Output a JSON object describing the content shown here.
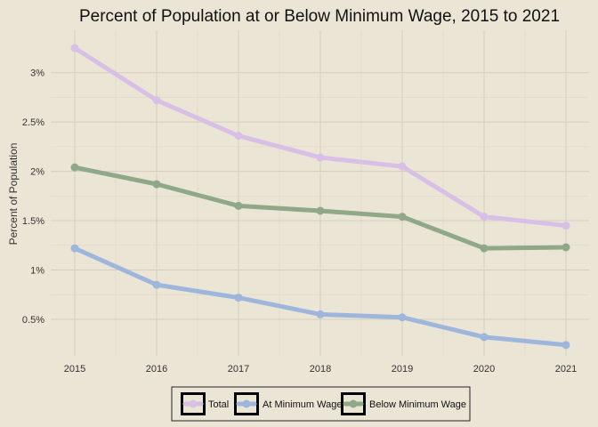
{
  "chart_data": {
    "type": "line",
    "title": "Percent of Population at or Below Minimum Wage, 2015 to 2021",
    "xlabel": "",
    "ylabel": "Percent of Population",
    "x": [
      "2015",
      "2016",
      "2017",
      "2018",
      "2019",
      "2020",
      "2021"
    ],
    "y_ticks": [
      "0.5%",
      "1%",
      "1.5%",
      "2%",
      "2.5%",
      "3%"
    ],
    "y_tick_values": [
      0.5,
      1,
      1.5,
      2,
      2.5,
      3
    ],
    "ylim": [
      0.13,
      3.43
    ],
    "grid": true,
    "legend_position": "bottom",
    "series": [
      {
        "name": "Total",
        "color": "#d8bfe6",
        "values": [
          3.25,
          2.72,
          2.36,
          2.14,
          2.05,
          1.54,
          1.45
        ]
      },
      {
        "name": "At Minimum Wage",
        "color": "#9fb6dc",
        "values": [
          1.22,
          0.85,
          0.72,
          0.55,
          0.52,
          0.32,
          0.24
        ]
      },
      {
        "name": "Below Minimum Wage",
        "color": "#8ea888",
        "values": [
          2.04,
          1.87,
          1.65,
          1.6,
          1.54,
          1.22,
          1.23
        ]
      }
    ]
  }
}
